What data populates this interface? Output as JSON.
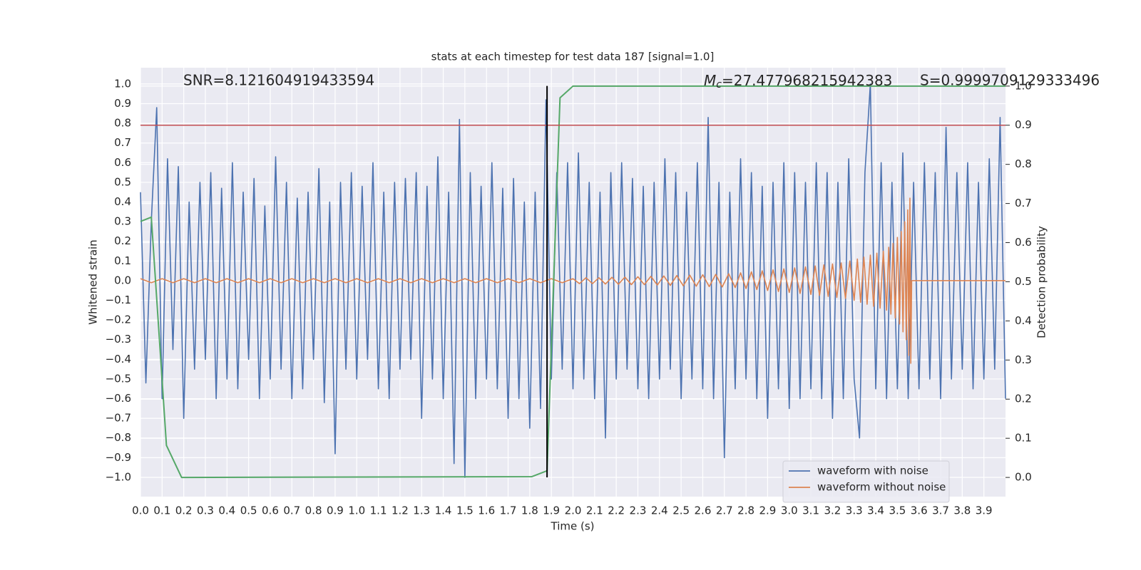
{
  "chart_data": {
    "type": "line",
    "title": "stats at each timestep for test data 187 [signal=1.0]",
    "xlabel": "Time (s)",
    "ylabel": "Whitened strain",
    "y2label": "Detection probability",
    "annotations": {
      "snr": "SNR=8.121604919433594",
      "mc_symbol": "M",
      "mc_subscript": "c",
      "mc": "=27.477968215942383",
      "s": "S=0.9999709129333496"
    },
    "xlim": [
      0,
      4.0
    ],
    "ylim": [
      -1.098,
      1.083
    ],
    "y2lim": [
      -0.049,
      1.047
    ],
    "grid": true,
    "legend": "lower right",
    "xticks": [
      {
        "value": 0,
        "label": "0.0"
      },
      {
        "value": 0.1,
        "label": "0.1"
      },
      {
        "value": 0.2,
        "label": "0.2"
      },
      {
        "value": 0.3,
        "label": "0.3"
      },
      {
        "value": 0.4,
        "label": "0.4"
      },
      {
        "value": 0.5,
        "label": "0.5"
      },
      {
        "value": 0.6,
        "label": "0.6"
      },
      {
        "value": 0.7,
        "label": "0.7"
      },
      {
        "value": 0.8,
        "label": "0.8"
      },
      {
        "value": 0.9,
        "label": "0.9"
      },
      {
        "value": 1.0,
        "label": "1.0"
      },
      {
        "value": 1.1,
        "label": "1.1"
      },
      {
        "value": 1.2,
        "label": "1.2"
      },
      {
        "value": 1.3,
        "label": "1.3"
      },
      {
        "value": 1.4,
        "label": "1.4"
      },
      {
        "value": 1.5,
        "label": "1.5"
      },
      {
        "value": 1.6,
        "label": "1.6"
      },
      {
        "value": 1.7,
        "label": "1.7"
      },
      {
        "value": 1.8,
        "label": "1.8"
      },
      {
        "value": 1.9,
        "label": "1.9"
      },
      {
        "value": 2.0,
        "label": "2.0"
      },
      {
        "value": 2.1,
        "label": "2.1"
      },
      {
        "value": 2.2,
        "label": "2.2"
      },
      {
        "value": 2.3,
        "label": "2.3"
      },
      {
        "value": 2.4,
        "label": "2.4"
      },
      {
        "value": 2.5,
        "label": "2.5"
      },
      {
        "value": 2.6,
        "label": "2.6"
      },
      {
        "value": 2.7,
        "label": "2.7"
      },
      {
        "value": 2.8,
        "label": "2.8"
      },
      {
        "value": 2.9,
        "label": "2.9"
      },
      {
        "value": 3.0,
        "label": "3.0"
      },
      {
        "value": 3.1,
        "label": "3.1"
      },
      {
        "value": 3.2,
        "label": "3.2"
      },
      {
        "value": 3.3,
        "label": "3.3"
      },
      {
        "value": 3.4,
        "label": "3.4"
      },
      {
        "value": 3.5,
        "label": "3.5"
      },
      {
        "value": 3.6,
        "label": "3.6"
      },
      {
        "value": 3.7,
        "label": "3.7"
      },
      {
        "value": 3.8,
        "label": "3.8"
      },
      {
        "value": 3.9,
        "label": "3.9"
      }
    ],
    "yticks": [
      {
        "value": -1.0,
        "label": "−1.0"
      },
      {
        "value": -0.9,
        "label": "−0.9"
      },
      {
        "value": -0.8,
        "label": "−0.8"
      },
      {
        "value": -0.7,
        "label": "−0.7"
      },
      {
        "value": -0.6,
        "label": "−0.6"
      },
      {
        "value": -0.5,
        "label": "−0.5"
      },
      {
        "value": -0.4,
        "label": "−0.4"
      },
      {
        "value": -0.3,
        "label": "−0.3"
      },
      {
        "value": -0.2,
        "label": "−0.2"
      },
      {
        "value": -0.1,
        "label": "−0.1"
      },
      {
        "value": 0,
        "label": "0.0"
      },
      {
        "value": 0.1,
        "label": "0.1"
      },
      {
        "value": 0.2,
        "label": "0.2"
      },
      {
        "value": 0.3,
        "label": "0.3"
      },
      {
        "value": 0.4,
        "label": "0.4"
      },
      {
        "value": 0.5,
        "label": "0.5"
      },
      {
        "value": 0.6,
        "label": "0.6"
      },
      {
        "value": 0.7,
        "label": "0.7"
      },
      {
        "value": 0.8,
        "label": "0.8"
      },
      {
        "value": 0.9,
        "label": "0.9"
      },
      {
        "value": 1.0,
        "label": "1.0"
      }
    ],
    "y2ticks": [
      {
        "value": 0,
        "label": "0.0"
      },
      {
        "value": 0.1,
        "label": "0.1"
      },
      {
        "value": 0.2,
        "label": "0.2"
      },
      {
        "value": 0.3,
        "label": "0.3"
      },
      {
        "value": 0.4,
        "label": "0.4"
      },
      {
        "value": 0.5,
        "label": "0.5"
      },
      {
        "value": 0.6,
        "label": "0.6"
      },
      {
        "value": 0.7,
        "label": "0.7"
      },
      {
        "value": 0.8,
        "label": "0.8"
      },
      {
        "value": 0.9,
        "label": "0.9"
      },
      {
        "value": 1.0,
        "label": "1.0"
      }
    ],
    "series": [
      {
        "name": "waveform with noise",
        "color": "#4c72b0",
        "x": [
          0,
          0.025,
          0.05,
          0.075,
          0.1,
          0.125,
          0.15,
          0.175,
          0.2,
          0.225,
          0.25,
          0.275,
          0.3,
          0.325,
          0.35,
          0.375,
          0.4,
          0.425,
          0.45,
          0.475,
          0.5,
          0.525,
          0.55,
          0.575,
          0.6,
          0.625,
          0.65,
          0.675,
          0.7,
          0.725,
          0.75,
          0.775,
          0.8,
          0.825,
          0.85,
          0.875,
          0.9,
          0.925,
          0.95,
          0.975,
          1.0,
          1.025,
          1.05,
          1.075,
          1.1,
          1.125,
          1.15,
          1.175,
          1.2,
          1.225,
          1.25,
          1.275,
          1.3,
          1.325,
          1.35,
          1.375,
          1.4,
          1.425,
          1.45,
          1.475,
          1.5,
          1.525,
          1.55,
          1.575,
          1.6,
          1.625,
          1.65,
          1.675,
          1.7,
          1.725,
          1.75,
          1.775,
          1.8,
          1.825,
          1.85,
          1.875,
          1.9,
          1.925,
          1.95,
          1.975,
          2.0,
          2.025,
          2.05,
          2.075,
          2.1,
          2.125,
          2.15,
          2.175,
          2.2,
          2.225,
          2.25,
          2.275,
          2.3,
          2.325,
          2.35,
          2.375,
          2.4,
          2.425,
          2.45,
          2.475,
          2.5,
          2.525,
          2.55,
          2.575,
          2.6,
          2.625,
          2.65,
          2.675,
          2.7,
          2.725,
          2.75,
          2.775,
          2.8,
          2.825,
          2.85,
          2.875,
          2.9,
          2.925,
          2.95,
          2.975,
          3.0,
          3.025,
          3.05,
          3.075,
          3.1,
          3.125,
          3.15,
          3.175,
          3.2,
          3.225,
          3.25,
          3.275,
          3.3,
          3.325,
          3.35,
          3.375,
          3.4,
          3.425,
          3.45,
          3.475,
          3.5,
          3.525,
          3.55,
          3.575,
          3.6,
          3.625,
          3.65,
          3.675,
          3.7,
          3.725,
          3.75,
          3.775,
          3.8,
          3.825,
          3.85,
          3.875,
          3.9,
          3.925,
          3.95,
          3.975,
          4.0
        ],
        "values": [
          0.45,
          -0.52,
          0.3,
          0.88,
          -0.6,
          0.62,
          -0.35,
          0.58,
          -0.7,
          0.4,
          -0.45,
          0.5,
          -0.4,
          0.55,
          -0.6,
          0.47,
          -0.5,
          0.6,
          -0.55,
          0.45,
          -0.4,
          0.52,
          -0.6,
          0.38,
          -0.5,
          0.63,
          -0.45,
          0.5,
          -0.6,
          0.42,
          -0.55,
          0.45,
          -0.4,
          0.57,
          -0.62,
          0.4,
          -0.88,
          0.5,
          -0.45,
          0.55,
          -0.5,
          0.48,
          -0.4,
          0.6,
          -0.55,
          0.45,
          -0.6,
          0.5,
          -0.45,
          0.52,
          -0.4,
          0.55,
          -0.7,
          0.48,
          -0.5,
          0.63,
          -0.6,
          0.45,
          -0.93,
          0.82,
          -1.0,
          0.55,
          -0.6,
          0.48,
          -0.5,
          0.6,
          -0.55,
          0.47,
          -0.7,
          0.52,
          -0.6,
          0.4,
          -0.75,
          0.45,
          -0.65,
          0.92,
          -0.5,
          0.55,
          -0.45,
          0.6,
          -0.55,
          0.65,
          -0.5,
          0.5,
          -0.6,
          0.45,
          -0.8,
          0.55,
          -0.5,
          0.6,
          -0.45,
          0.52,
          -0.55,
          0.48,
          -0.6,
          0.5,
          -0.5,
          0.62,
          -0.45,
          0.55,
          -0.6,
          0.45,
          -0.5,
          0.6,
          -0.55,
          0.83,
          -0.6,
          0.5,
          -0.9,
          0.45,
          -0.55,
          0.62,
          -0.5,
          0.55,
          -0.6,
          0.48,
          -0.7,
          0.5,
          -0.55,
          0.6,
          -0.65,
          0.55,
          -0.6,
          0.5,
          -0.55,
          0.6,
          -0.6,
          0.55,
          -0.7,
          0.5,
          -0.6,
          0.62,
          -0.5,
          -0.8,
          0.55,
          1.0,
          -0.55,
          0.6,
          -0.6,
          0.5,
          -0.55,
          0.65,
          -0.6,
          0.5,
          -0.55,
          0.6,
          -0.5,
          0.55,
          -0.6,
          0.78,
          -0.5,
          0.55,
          -0.45,
          0.6,
          -0.55,
          0.5,
          -0.5,
          0.62,
          -0.45,
          0.83,
          -0.6
        ]
      },
      {
        "name": "waveform without noise",
        "color": "#dd8452",
        "x": [
          0,
          0.05,
          0.1,
          0.15,
          0.2,
          0.25,
          0.3,
          0.35,
          0.4,
          0.45,
          0.5,
          0.55,
          0.6,
          0.65,
          0.7,
          0.75,
          0.8,
          0.85,
          0.9,
          0.95,
          1.0,
          1.05,
          1.1,
          1.15,
          1.2,
          1.25,
          1.3,
          1.35,
          1.4,
          1.45,
          1.5,
          1.55,
          1.6,
          1.65,
          1.7,
          1.75,
          1.8,
          1.85,
          1.9,
          1.95,
          2.0,
          2.03,
          2.06,
          2.09,
          2.12,
          2.15,
          2.18,
          2.21,
          2.24,
          2.27,
          2.3,
          2.33,
          2.36,
          2.39,
          2.42,
          2.45,
          2.48,
          2.51,
          2.54,
          2.57,
          2.6,
          2.63,
          2.66,
          2.69,
          2.72,
          2.75,
          2.775,
          2.8,
          2.825,
          2.85,
          2.875,
          2.9,
          2.925,
          2.95,
          2.975,
          3.0,
          3.025,
          3.05,
          3.075,
          3.1,
          3.12,
          3.14,
          3.16,
          3.18,
          3.2,
          3.22,
          3.24,
          3.26,
          3.28,
          3.3,
          3.315,
          3.33,
          3.345,
          3.36,
          3.375,
          3.39,
          3.405,
          3.42,
          3.435,
          3.45,
          3.46,
          3.47,
          3.48,
          3.49,
          3.5,
          3.51,
          3.518,
          3.526,
          3.534,
          3.541,
          3.548,
          3.553,
          3.558,
          3.562,
          3.566,
          4.0
        ],
        "values": [
          0.01,
          -0.01,
          0.01,
          -0.01,
          0.01,
          -0.01,
          0.01,
          -0.01,
          0.01,
          -0.01,
          0.01,
          -0.01,
          0.01,
          -0.01,
          0.01,
          -0.01,
          0.01,
          -0.01,
          0.01,
          -0.01,
          0.01,
          -0.01,
          0.01,
          -0.01,
          0.01,
          -0.01,
          0.01,
          -0.01,
          0.01,
          -0.01,
          0.01,
          -0.01,
          0.01,
          -0.01,
          0.01,
          -0.01,
          0.01,
          -0.01,
          0.01,
          -0.01,
          0.01,
          -0.015,
          0.015,
          -0.015,
          0.015,
          -0.017,
          0.017,
          -0.018,
          0.018,
          -0.02,
          0.02,
          -0.02,
          0.022,
          -0.022,
          0.024,
          -0.024,
          0.026,
          -0.026,
          0.028,
          -0.028,
          0.03,
          -0.03,
          0.032,
          -0.032,
          0.035,
          -0.035,
          0.04,
          -0.04,
          0.045,
          -0.045,
          0.05,
          -0.05,
          0.055,
          -0.055,
          0.06,
          -0.06,
          0.065,
          -0.065,
          0.07,
          -0.07,
          0.075,
          -0.075,
          0.08,
          -0.08,
          0.085,
          -0.085,
          0.09,
          -0.09,
          0.1,
          -0.1,
          0.11,
          -0.11,
          0.12,
          -0.12,
          0.13,
          -0.13,
          0.14,
          -0.14,
          0.15,
          -0.15,
          0.17,
          -0.17,
          0.19,
          -0.19,
          0.22,
          -0.22,
          0.25,
          -0.26,
          0.3,
          -0.3,
          0.36,
          -0.38,
          0.42,
          -0.42,
          0,
          0
        ]
      },
      {
        "color": "#55a868",
        "axis": "y2",
        "x": [
          0,
          0.05,
          0.12,
          0.19,
          1.81,
          1.88,
          1.94,
          2.0,
          4.0
        ],
        "values": [
          0.654,
          0.665,
          0.082,
          0,
          0.002,
          0.017,
          0.97,
          1.0,
          1.0
        ]
      }
    ],
    "hline": {
      "y2": 0.9,
      "color": "#c44e52"
    },
    "vline": {
      "x": 1.88,
      "ymin": -1.0,
      "ymax": 0.99,
      "color": "#000000"
    }
  }
}
